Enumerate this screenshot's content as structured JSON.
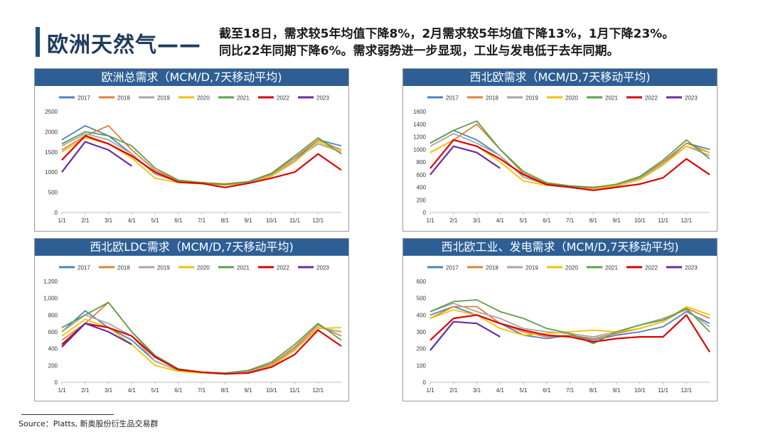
{
  "header": {
    "title": "欧洲天然气——",
    "summary_line1": "截至18日，需求较5年均值下降8%，2月需求较5年均值下降13%，1月下降23%。",
    "summary_line2": "同比22年同期下降6%。需求弱势进一步显现，工业与发电低于去年同期。"
  },
  "footer": {
    "source": "Source：Platts, 新奥股份衍生品交易群"
  },
  "series_meta": [
    {
      "name": "2017",
      "color": "#4f81bd"
    },
    {
      "name": "2018",
      "color": "#e0803a"
    },
    {
      "name": "2019",
      "color": "#a6a6a6"
    },
    {
      "name": "2020",
      "color": "#f2c200"
    },
    {
      "name": "2021",
      "color": "#5aa04a"
    },
    {
      "name": "2022",
      "color": "#e00000"
    },
    {
      "name": "2023",
      "color": "#6a2aa0"
    }
  ],
  "chart_data": [
    {
      "type": "line",
      "title": "欧洲总需求（MCM/D,7天移动平均)",
      "x_ticks": [
        "1/1",
        "2/1",
        "3/1",
        "4/1",
        "5/1",
        "6/1",
        "7/1",
        "8/1",
        "9/1",
        "10/1",
        "11/1",
        "12/1"
      ],
      "y_ticks": [
        "0",
        "500",
        "1000",
        "1500",
        "2000",
        "2500"
      ],
      "ylim": [
        0,
        2500
      ],
      "series": [
        {
          "name": "2017",
          "values": [
            1800,
            2150,
            1900,
            1450,
            950,
            780,
            740,
            700,
            740,
            900,
            1300,
            1800,
            1650
          ]
        },
        {
          "name": "2018",
          "values": [
            1550,
            1900,
            2150,
            1550,
            1050,
            780,
            740,
            710,
            760,
            950,
            1350,
            1800,
            1550
          ]
        },
        {
          "name": "2019",
          "values": [
            1650,
            1950,
            1800,
            1450,
            950,
            760,
            720,
            690,
            740,
            920,
            1300,
            1700,
            1500
          ]
        },
        {
          "name": "2020",
          "values": [
            1500,
            1850,
            1700,
            1350,
            850,
            740,
            710,
            680,
            720,
            900,
            1250,
            1750,
            1500
          ]
        },
        {
          "name": "2021",
          "values": [
            1700,
            2000,
            1900,
            1650,
            1100,
            800,
            740,
            690,
            760,
            970,
            1400,
            1850,
            1450
          ]
        },
        {
          "name": "2022",
          "values": [
            1300,
            1900,
            1700,
            1400,
            1000,
            750,
            720,
            620,
            720,
            850,
            1000,
            1450,
            1050
          ]
        },
        {
          "name": "2023",
          "values": [
            1000,
            1750,
            1550,
            1150
          ]
        }
      ]
    },
    {
      "type": "line",
      "title": "西北欧需求（MCM/D,7天移动平均)",
      "x_ticks": [
        "1/1",
        "2/1",
        "3/1",
        "4/1",
        "5/1",
        "6/1",
        "7/1",
        "8/1",
        "9/1",
        "10/1",
        "11/1",
        "12/1"
      ],
      "y_ticks": [
        "0",
        "200",
        "400",
        "600",
        "800",
        "1000",
        "1200",
        "1400",
        "1600"
      ],
      "ylim": [
        0,
        1600
      ],
      "series": [
        {
          "name": "2017",
          "values": [
            1100,
            1300,
            1150,
            900,
            560,
            450,
            420,
            400,
            430,
            540,
            780,
            1100,
            1000
          ]
        },
        {
          "name": "2018",
          "values": [
            950,
            1150,
            1400,
            1000,
            620,
            450,
            410,
            400,
            440,
            560,
            800,
            1100,
            950
          ]
        },
        {
          "name": "2019",
          "values": [
            1050,
            1250,
            1100,
            900,
            560,
            440,
            410,
            390,
            430,
            540,
            780,
            1050,
            900
          ]
        },
        {
          "name": "2020",
          "values": [
            950,
            1150,
            1050,
            800,
            500,
            430,
            400,
            380,
            420,
            520,
            750,
            1050,
            950
          ]
        },
        {
          "name": "2021",
          "values": [
            1100,
            1300,
            1450,
            1000,
            650,
            470,
            420,
            390,
            450,
            570,
            830,
            1150,
            850
          ]
        },
        {
          "name": "2022",
          "values": [
            700,
            1150,
            1050,
            850,
            600,
            440,
            400,
            350,
            400,
            450,
            550,
            850,
            600
          ]
        },
        {
          "name": "2023",
          "values": [
            600,
            1050,
            950,
            700
          ]
        }
      ]
    },
    {
      "type": "line",
      "title": "西北欧LDC需求（MCM/D,7天移动平均)",
      "x_ticks": [
        "1/1",
        "2/1",
        "3/1",
        "4/1",
        "5/1",
        "6/1",
        "7/1",
        "8/1",
        "9/1",
        "10/1",
        "11/1",
        "12/1"
      ],
      "y_ticks": [
        "0",
        "200",
        "400",
        "600",
        "800",
        "1,000",
        "1,200"
      ],
      "ylim": [
        0,
        1200
      ],
      "series": [
        {
          "name": "2017",
          "values": [
            600,
            850,
            650,
            500,
            250,
            140,
            120,
            110,
            120,
            200,
            400,
            650,
            600
          ]
        },
        {
          "name": "2018",
          "values": [
            500,
            700,
            950,
            600,
            300,
            150,
            120,
            110,
            130,
            220,
            420,
            680,
            550
          ]
        },
        {
          "name": "2019",
          "values": [
            600,
            800,
            700,
            550,
            250,
            140,
            110,
            100,
            120,
            200,
            400,
            650,
            600
          ]
        },
        {
          "name": "2020",
          "values": [
            550,
            750,
            650,
            450,
            200,
            130,
            110,
            100,
            110,
            190,
            380,
            640,
            650
          ]
        },
        {
          "name": "2021",
          "values": [
            650,
            800,
            950,
            600,
            320,
            160,
            120,
            110,
            140,
            240,
            450,
            700,
            500
          ]
        },
        {
          "name": "2022",
          "values": [
            450,
            700,
            650,
            550,
            300,
            150,
            120,
            100,
            110,
            180,
            330,
            620,
            430
          ]
        },
        {
          "name": "2023",
          "values": [
            420,
            700,
            600,
            450
          ]
        }
      ]
    },
    {
      "type": "line",
      "title": "西北欧工业、发电需求（MCM/D,7天移动平均)",
      "x_ticks": [
        "1/1",
        "2/1",
        "3/1",
        "4/1",
        "5/1",
        "6/1",
        "7/1",
        "8/1",
        "9/1",
        "10/1",
        "11/1",
        "12/1"
      ],
      "y_ticks": [
        "0",
        "100",
        "200",
        "300",
        "400",
        "500",
        "600"
      ],
      "ylim": [
        0,
        600
      ],
      "series": [
        {
          "name": "2017",
          "values": [
            400,
            450,
            400,
            350,
            280,
            260,
            280,
            250,
            280,
            300,
            330,
            420,
            350
          ]
        },
        {
          "name": "2018",
          "values": [
            380,
            450,
            450,
            350,
            300,
            270,
            280,
            260,
            290,
            320,
            360,
            440,
            380
          ]
        },
        {
          "name": "2019",
          "values": [
            420,
            470,
            420,
            380,
            320,
            300,
            290,
            270,
            300,
            340,
            380,
            430,
            330
          ]
        },
        {
          "name": "2020",
          "values": [
            380,
            430,
            400,
            320,
            280,
            290,
            300,
            310,
            300,
            320,
            360,
            450,
            400
          ]
        },
        {
          "name": "2021",
          "values": [
            420,
            480,
            490,
            420,
            380,
            320,
            290,
            230,
            300,
            340,
            370,
            440,
            300
          ]
        },
        {
          "name": "2022",
          "values": [
            250,
            380,
            400,
            350,
            310,
            280,
            270,
            240,
            260,
            270,
            270,
            400,
            180
          ]
        },
        {
          "name": "2023",
          "values": [
            190,
            360,
            350,
            270
          ]
        }
      ]
    }
  ]
}
